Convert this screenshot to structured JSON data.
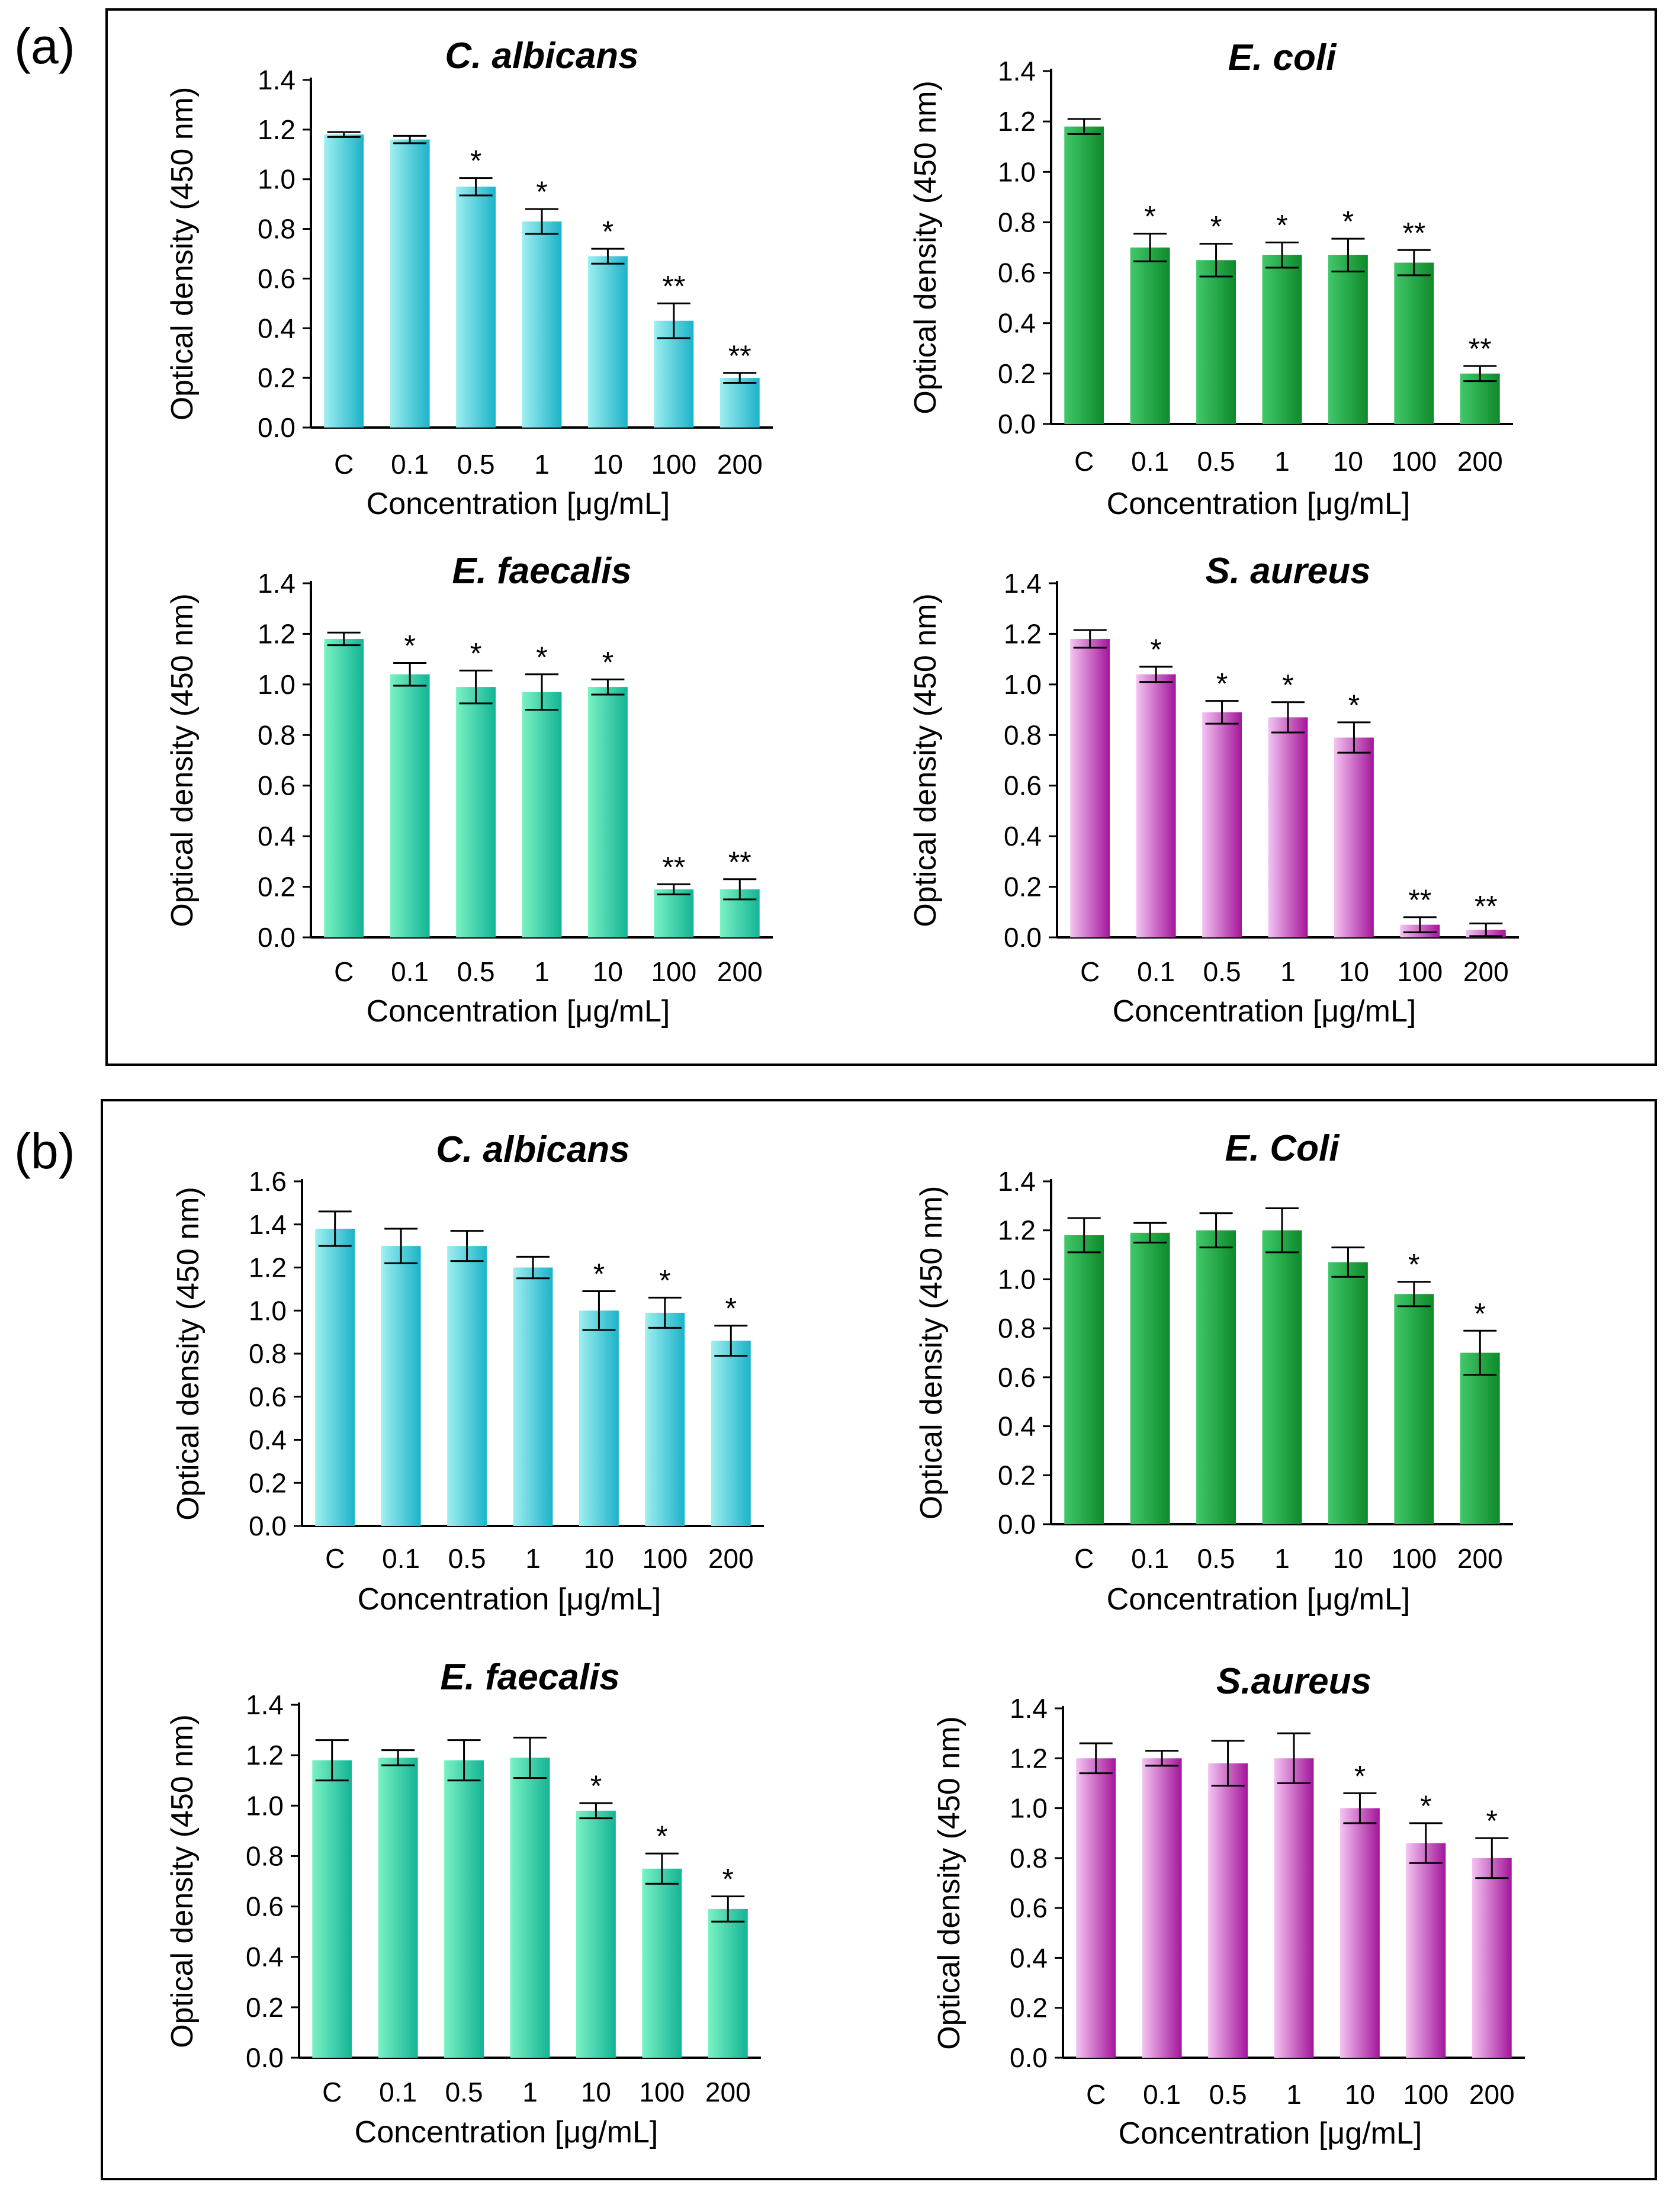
{
  "panels": [
    {
      "label": "(a)"
    },
    {
      "label": "(b)"
    }
  ],
  "colors": {
    "cyan": {
      "light": "#9FEFF0",
      "dark": "#1BB3C9"
    },
    "green": {
      "light": "#41C86A",
      "dark": "#0E8A2A"
    },
    "teal": {
      "light": "#7AF2C4",
      "dark": "#13B495"
    },
    "magenta": {
      "light": "#F4C4F2",
      "dark": "#A3159A"
    }
  },
  "chart_data": [
    {
      "panel": "(a)",
      "type": "bar",
      "title": "C. albicans",
      "color": "cyan",
      "categories": [
        "C",
        "0.1",
        "0.5",
        "1",
        "10",
        "100",
        "200"
      ],
      "values": [
        1.18,
        1.16,
        0.97,
        0.83,
        0.69,
        0.43,
        0.2
      ],
      "errors": [
        0.01,
        0.015,
        0.035,
        0.05,
        0.03,
        0.07,
        0.02
      ],
      "significance": [
        "",
        "",
        "*",
        "*",
        "*",
        "**",
        "**"
      ],
      "xlabel": "Concentration [μg/mL]",
      "ylabel": "Optical density (450 nm)",
      "ylim": [
        0,
        1.4
      ],
      "yticks": [
        "0.0",
        "0.2",
        "0.4",
        "0.6",
        "0.8",
        "1.0",
        "1.2",
        "1.4"
      ]
    },
    {
      "panel": "(a)",
      "type": "bar",
      "title": "E. coli",
      "color": "green",
      "categories": [
        "C",
        "0.1",
        "0.5",
        "1",
        "10",
        "100",
        "200"
      ],
      "values": [
        1.18,
        0.7,
        0.65,
        0.67,
        0.67,
        0.64,
        0.2
      ],
      "errors": [
        0.03,
        0.055,
        0.065,
        0.05,
        0.065,
        0.05,
        0.03
      ],
      "significance": [
        "",
        "*",
        "*",
        "*",
        "*",
        "**",
        "**"
      ],
      "xlabel": "Concentration [μg/mL]",
      "ylabel": "Optical density (450 nm)",
      "ylim": [
        0,
        1.4
      ],
      "yticks": [
        "0.0",
        "0.2",
        "0.4",
        "0.6",
        "0.8",
        "1.0",
        "1.2",
        "1.4"
      ]
    },
    {
      "panel": "(a)",
      "type": "bar",
      "title": "E. faecalis",
      "color": "teal",
      "categories": [
        "C",
        "0.1",
        "0.5",
        "1",
        "10",
        "100",
        "200"
      ],
      "values": [
        1.18,
        1.04,
        0.99,
        0.97,
        0.99,
        0.19,
        0.19
      ],
      "errors": [
        0.025,
        0.045,
        0.065,
        0.07,
        0.03,
        0.02,
        0.04
      ],
      "significance": [
        "",
        "*",
        "*",
        "*",
        "*",
        "**",
        "**"
      ],
      "xlabel": "Concentration [μg/mL]",
      "ylabel": "Optical density (450 nm)",
      "ylim": [
        0,
        1.4
      ],
      "yticks": [
        "0.0",
        "0.2",
        "0.4",
        "0.6",
        "0.8",
        "1.0",
        "1.2",
        "1.4"
      ]
    },
    {
      "panel": "(a)",
      "type": "bar",
      "title": "S. aureus",
      "color": "magenta",
      "categories": [
        "C",
        "0.1",
        "0.5",
        "1",
        "10",
        "100",
        "200"
      ],
      "values": [
        1.18,
        1.04,
        0.89,
        0.87,
        0.79,
        0.05,
        0.03
      ],
      "errors": [
        0.035,
        0.03,
        0.045,
        0.06,
        0.06,
        0.03,
        0.025
      ],
      "significance": [
        "",
        "*",
        "*",
        "*",
        "*",
        "**",
        "**"
      ],
      "xlabel": "Concentration [μg/mL]",
      "ylabel": "Optical density (450 nm)",
      "ylim": [
        0,
        1.4
      ],
      "yticks": [
        "0.0",
        "0.2",
        "0.4",
        "0.6",
        "0.8",
        "1.0",
        "1.2",
        "1.4"
      ]
    },
    {
      "panel": "(b)",
      "type": "bar",
      "title": "C. albicans",
      "color": "cyan",
      "categories": [
        "C",
        "0.1",
        "0.5",
        "1",
        "10",
        "100",
        "200"
      ],
      "values": [
        1.38,
        1.3,
        1.3,
        1.2,
        1.0,
        0.99,
        0.86
      ],
      "errors": [
        0.08,
        0.08,
        0.07,
        0.05,
        0.09,
        0.07,
        0.07
      ],
      "significance": [
        "",
        "",
        "",
        "",
        "*",
        "*",
        "*"
      ],
      "xlabel": "Concentration [μg/mL]",
      "ylabel": "Optical density (450 nm)",
      "ylim": [
        0,
        1.6
      ],
      "yticks": [
        "0.0",
        "0.2",
        "0.4",
        "0.6",
        "0.8",
        "1.0",
        "1.2",
        "1.4",
        "1.6"
      ]
    },
    {
      "panel": "(b)",
      "type": "bar",
      "title": "E. Coli",
      "color": "green",
      "categories": [
        "C",
        "0.1",
        "0.5",
        "1",
        "10",
        "100",
        "200"
      ],
      "values": [
        1.18,
        1.19,
        1.2,
        1.2,
        1.07,
        0.94,
        0.7
      ],
      "errors": [
        0.07,
        0.04,
        0.07,
        0.09,
        0.06,
        0.05,
        0.09
      ],
      "significance": [
        "",
        "",
        "",
        "",
        "",
        "*",
        "*"
      ],
      "xlabel": "Concentration [μg/mL]",
      "ylabel": "Optical density (450 nm)",
      "ylim": [
        0,
        1.4
      ],
      "yticks": [
        "0.0",
        "0.2",
        "0.4",
        "0.6",
        "0.8",
        "1.0",
        "1.2",
        "1.4"
      ]
    },
    {
      "panel": "(b)",
      "type": "bar",
      "title": "E. faecalis",
      "color": "teal",
      "categories": [
        "C",
        "0.1",
        "0.5",
        "1",
        "10",
        "100",
        "200"
      ],
      "values": [
        1.18,
        1.19,
        1.18,
        1.19,
        0.98,
        0.75,
        0.59
      ],
      "errors": [
        0.08,
        0.03,
        0.08,
        0.08,
        0.03,
        0.06,
        0.05
      ],
      "significance": [
        "",
        "",
        "",
        "",
        "*",
        "*",
        "*"
      ],
      "xlabel": "Concentration [μg/mL]",
      "ylabel": "Optical density (450 nm)",
      "ylim": [
        0,
        1.4
      ],
      "yticks": [
        "0.0",
        "0.2",
        "0.4",
        "0.6",
        "0.8",
        "1.0",
        "1.2",
        "1.4"
      ]
    },
    {
      "panel": "(b)",
      "type": "bar",
      "title": "S.aureus",
      "color": "magenta",
      "categories": [
        "C",
        "0.1",
        "0.5",
        "1",
        "10",
        "100",
        "200"
      ],
      "values": [
        1.2,
        1.2,
        1.18,
        1.2,
        1.0,
        0.86,
        0.8
      ],
      "errors": [
        0.06,
        0.03,
        0.09,
        0.1,
        0.06,
        0.08,
        0.08
      ],
      "significance": [
        "",
        "",
        "",
        "",
        "*",
        "*",
        "*"
      ],
      "xlabel": "Concentration [μg/mL]",
      "ylabel": "Optical density (450 nm)",
      "ylim": [
        0,
        1.4
      ],
      "yticks": [
        "0.0",
        "0.2",
        "0.4",
        "0.6",
        "0.8",
        "1.0",
        "1.2",
        "1.4"
      ]
    }
  ]
}
